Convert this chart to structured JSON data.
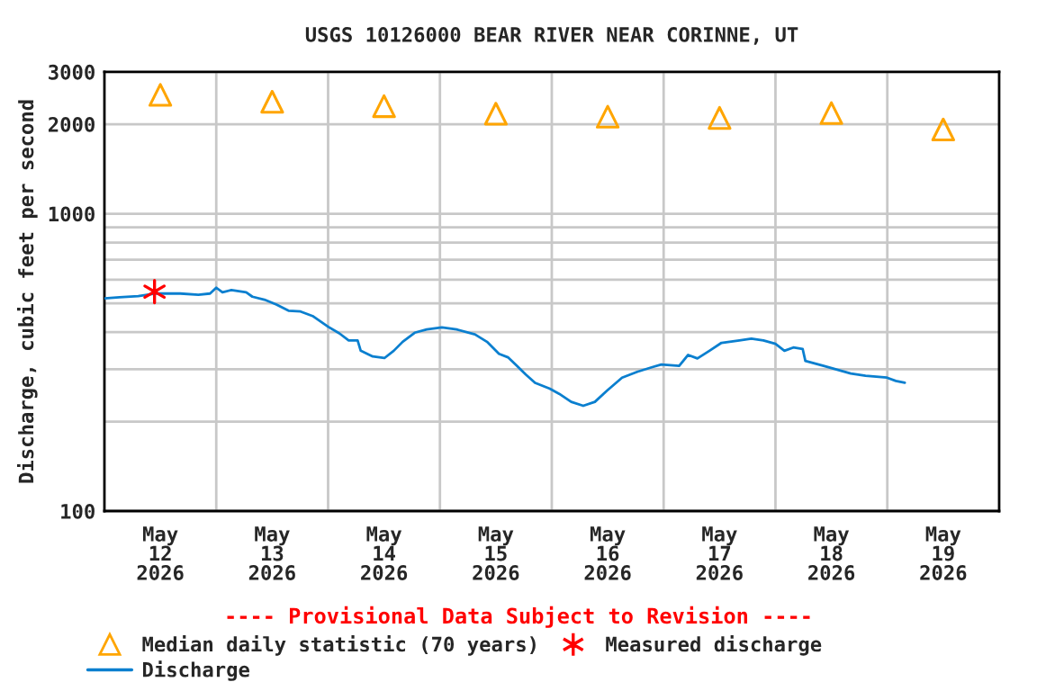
{
  "chart_data": {
    "type": "line",
    "title": "USGS 10126000 BEAR RIVER NEAR CORINNE, UT",
    "ylabel": "Discharge, cubic feet per second",
    "annotations": [
      "---- Provisional Data Subject to Revision ----"
    ],
    "log": "y",
    "grid": true,
    "legend": "bottom",
    "xlim": [
      "2026-05-12T00:00",
      "2026-05-20T00:00"
    ],
    "xticks": [
      {
        "value": "2026-05-12T12:00",
        "label": "May\n12\n2026"
      },
      {
        "value": "2026-05-13T12:00",
        "label": "May\n13\n2026"
      },
      {
        "value": "2026-05-14T12:00",
        "label": "May\n14\n2026"
      },
      {
        "value": "2026-05-15T12:00",
        "label": "May\n15\n2026"
      },
      {
        "value": "2026-05-16T12:00",
        "label": "May\n16\n2026"
      },
      {
        "value": "2026-05-17T12:00",
        "label": "May\n17\n2026"
      },
      {
        "value": "2026-05-18T12:00",
        "label": "May\n18\n2026"
      },
      {
        "value": "2026-05-19T12:00",
        "label": "May\n19\n2026"
      },
      {
        "value": "2026-05-13T00:00",
        "label": null
      },
      {
        "value": "2026-05-14T00:00",
        "label": null
      },
      {
        "value": "2026-05-15T00:00",
        "label": null
      },
      {
        "value": "2026-05-16T00:00",
        "label": null
      },
      {
        "value": "2026-05-17T00:00",
        "label": null
      },
      {
        "value": "2026-05-18T00:00",
        "label": null
      },
      {
        "value": "2026-05-19T00:00",
        "label": null
      }
    ],
    "ylim": [
      100,
      3000
    ],
    "yticks": [
      100,
      {
        "value": 200,
        "label": null
      },
      {
        "value": 300,
        "label": null
      },
      {
        "value": 400,
        "label": null
      },
      {
        "value": 500,
        "label": null
      },
      {
        "value": 600,
        "label": null
      },
      {
        "value": 700,
        "label": null
      },
      {
        "value": 800,
        "label": null
      },
      {
        "value": 900,
        "label": null
      },
      1000,
      2000,
      3000
    ],
    "series": [
      {
        "name": "Median daily statistic (70 years)",
        "type": "scatter",
        "marker": "triangle",
        "color": "#ffa500",
        "x": [
          "2026-05-12T12:00",
          "2026-05-13T12:00",
          "2026-05-14T12:00",
          "2026-05-15T12:00",
          "2026-05-16T12:00",
          "2026-05-17T12:00",
          "2026-05-18T12:00",
          "2026-05-19T12:00"
        ],
        "values": [
          2510,
          2380,
          2300,
          2170,
          2120,
          2100,
          2180,
          1920
        ]
      },
      {
        "name": "Discharge",
        "marker": "none",
        "line_style": "solid",
        "color": "#0a7fcf",
        "x": [
          "2026-05-12T00:00",
          "2026-05-12T03:15",
          "2026-05-12T07:15",
          "2026-05-12T11:05",
          "2026-05-12T16:15",
          "2026-05-12T20:10",
          "2026-05-12T22:40",
          "2026-05-13T00:00",
          "2026-05-13T01:20",
          "2026-05-13T03:15",
          "2026-05-13T06:25",
          "2026-05-13T07:45",
          "2026-05-13T10:20",
          "2026-05-13T12:55",
          "2026-05-13T15:30",
          "2026-05-13T18:05",
          "2026-05-13T20:40",
          "2026-05-14T00:00",
          "2026-05-14T02:25",
          "2026-05-14T04:25",
          "2026-05-14T06:20",
          "2026-05-14T07:00",
          "2026-05-14T09:35",
          "2026-05-14T12:05",
          "2026-05-14T14:05",
          "2026-05-14T16:00",
          "2026-05-14T18:35",
          "2026-05-14T21:10",
          "2026-05-15T00:25",
          "2026-05-15T03:35",
          "2026-05-15T07:30",
          "2026-05-15T10:05",
          "2026-05-15T12:40",
          "2026-05-15T14:35",
          "2026-05-15T16:30",
          "2026-05-15T18:25",
          "2026-05-15T20:25",
          "2026-05-15T23:35",
          "2026-05-16T01:35",
          "2026-05-16T04:10",
          "2026-05-16T06:45",
          "2026-05-16T09:15",
          "2026-05-16T11:50",
          "2026-05-16T15:05",
          "2026-05-16T18:20",
          "2026-05-16T21:35",
          "2026-05-16T23:30",
          "2026-05-17T03:20",
          "2026-05-17T05:15",
          "2026-05-17T07:15",
          "2026-05-17T09:50",
          "2026-05-17T12:25",
          "2026-05-17T16:15",
          "2026-05-17T18:50",
          "2026-05-17T21:25",
          "2026-05-18T00:00",
          "2026-05-18T01:55",
          "2026-05-18T03:50",
          "2026-05-18T05:50",
          "2026-05-18T06:25",
          "2026-05-18T10:20",
          "2026-05-18T13:35",
          "2026-05-18T16:10",
          "2026-05-18T19:20",
          "2026-05-18T23:55",
          "2026-05-19T01:50",
          "2026-05-19T03:45"
        ],
        "values": [
          519,
          524,
          528,
          539,
          539,
          534,
          539,
          564,
          544,
          554,
          544,
          526,
          514,
          495,
          472,
          469,
          453,
          417,
          396,
          375,
          375,
          346,
          331,
          327,
          346,
          371,
          398,
          408,
          415,
          408,
          393,
          371,
          338,
          329,
          308,
          288,
          270,
          258,
          248,
          233,
          226,
          233,
          254,
          281,
          294,
          305,
          311,
          308,
          335,
          326,
          346,
          368,
          375,
          380,
          375,
          365,
          346,
          355,
          351,
          320,
          308,
          298,
          290,
          285,
          281,
          274,
          270
        ]
      },
      {
        "name": "Measured discharge",
        "type": "scatter",
        "marker": "cross",
        "color": "#ff0000",
        "x": [
          "2026-05-12T10:45"
        ],
        "values": [
          547
        ]
      }
    ]
  }
}
